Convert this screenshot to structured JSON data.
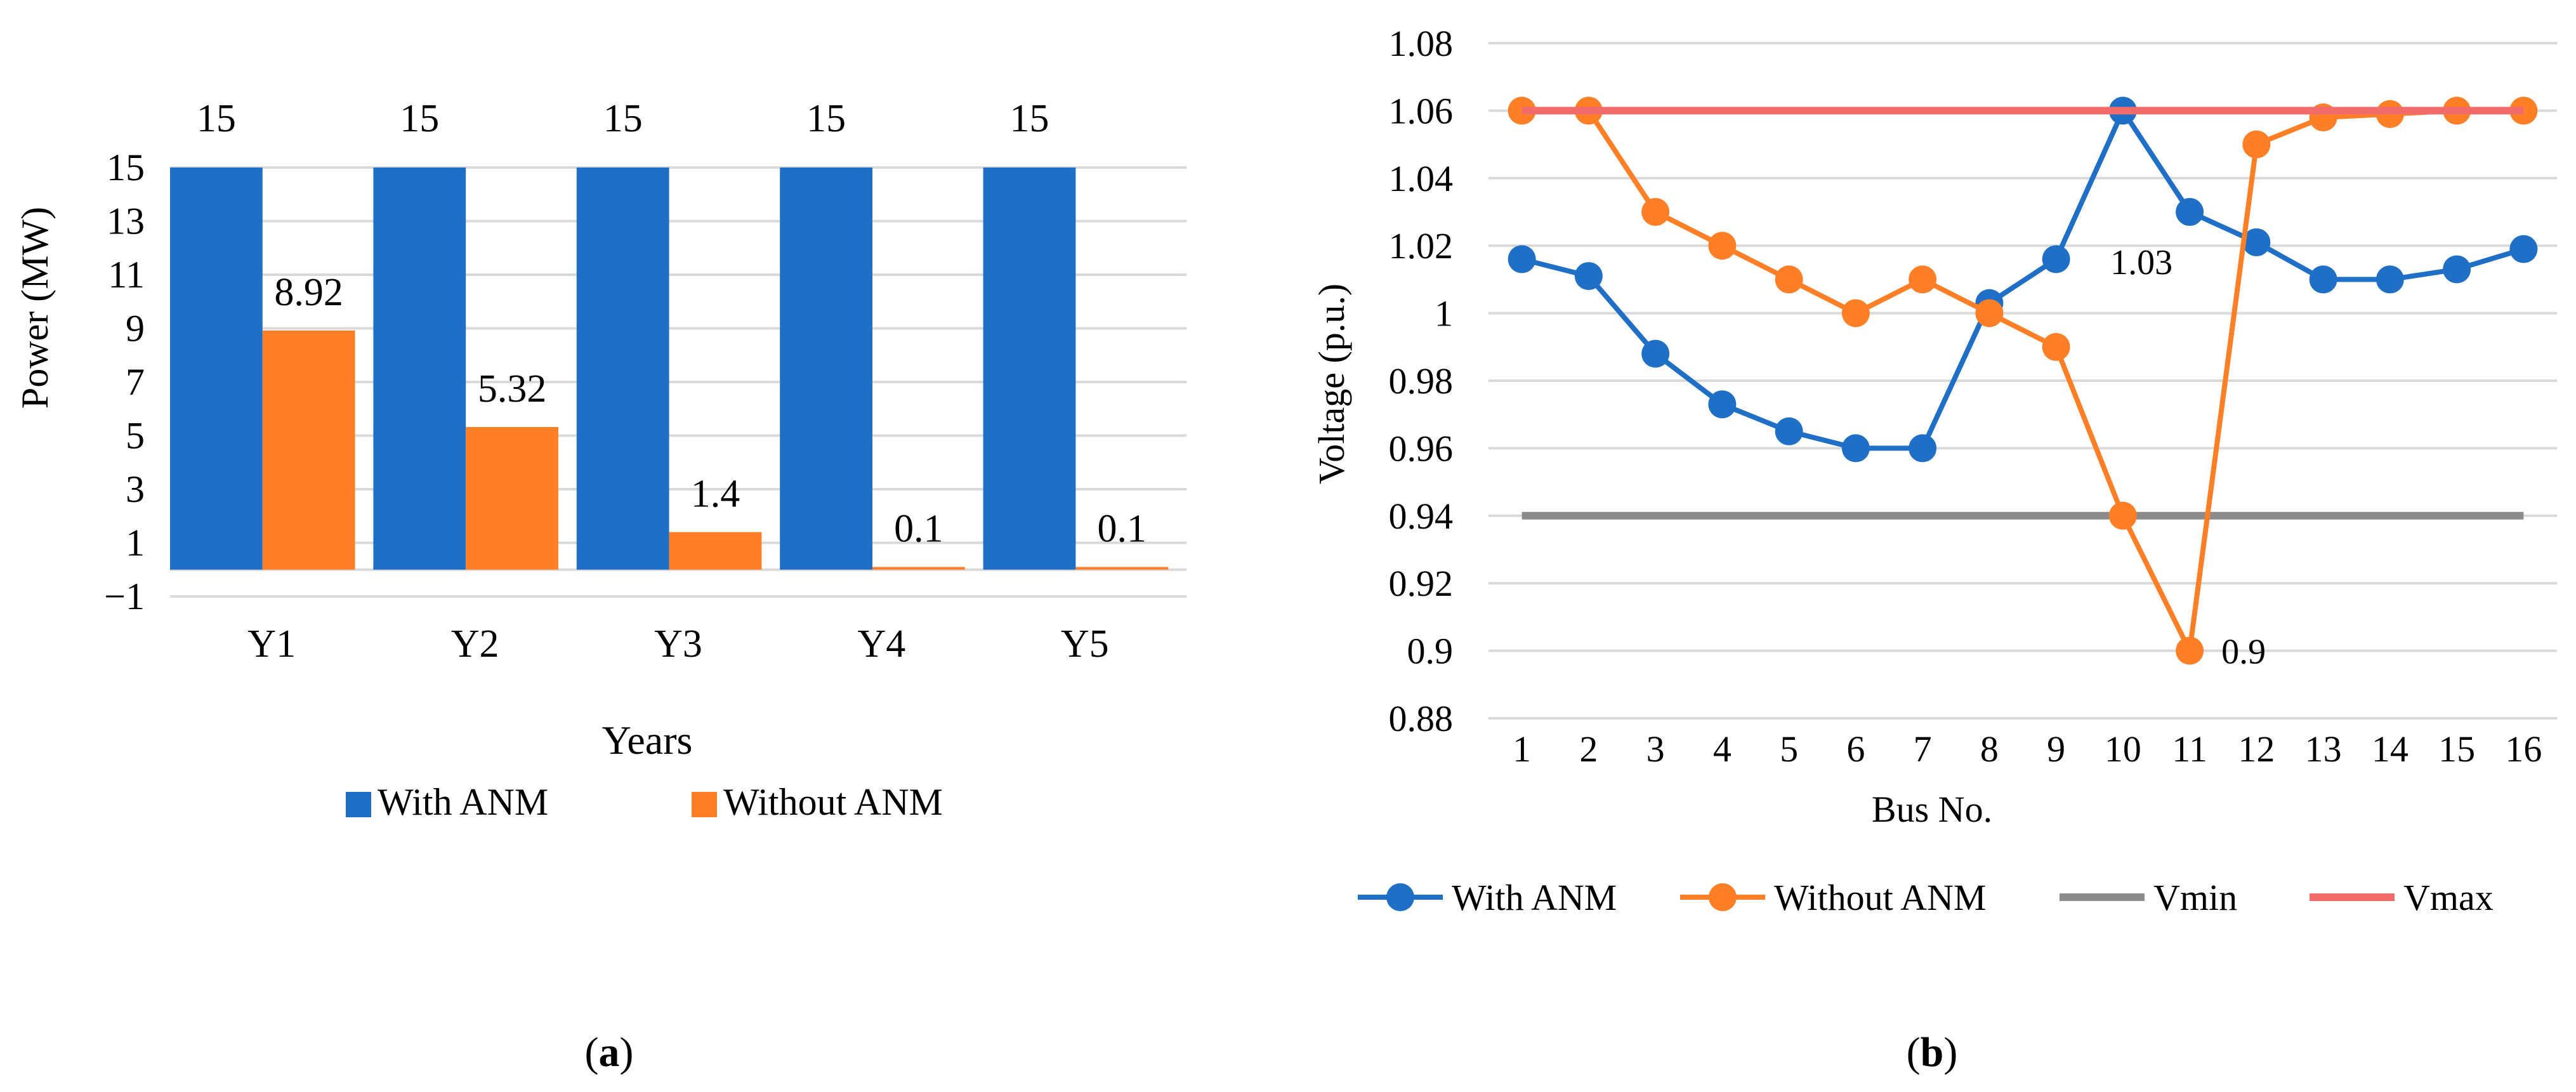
{
  "chart_data": [
    {
      "type": "bar",
      "panel_label": "a",
      "title": "",
      "xlabel": "Years",
      "ylabel": "Power (MW)",
      "ylim": [
        -1,
        15
      ],
      "yticks": [
        -1,
        1,
        3,
        5,
        7,
        9,
        11,
        13,
        15
      ],
      "categories": [
        "Y1",
        "Y2",
        "Y3",
        "Y4",
        "Y5"
      ],
      "series": [
        {
          "name": "With ANM",
          "color": "#1F6FC6",
          "values": [
            15,
            15,
            15,
            15,
            15
          ],
          "labels": [
            "15",
            "15",
            "15",
            "15",
            "15"
          ]
        },
        {
          "name": "Without ANM",
          "color": "#FF7F27",
          "values": [
            8.92,
            5.32,
            1.4,
            0.1,
            0.1
          ],
          "labels": [
            "8.92",
            "5.32",
            "1.4",
            "0.1",
            "0.1"
          ]
        }
      ],
      "grid": true,
      "legend": "bottom"
    },
    {
      "type": "line",
      "panel_label": "b",
      "title": "",
      "xlabel": "Bus No.",
      "ylabel": "Voltage (p.u.)",
      "ylim": [
        0.88,
        1.08
      ],
      "yticks": [
        0.88,
        0.9,
        0.92,
        0.94,
        0.96,
        0.98,
        1.0,
        1.02,
        1.04,
        1.06,
        1.08
      ],
      "ytick_labels": [
        "0.88",
        "0.9",
        "0.92",
        "0.94",
        "0.96",
        "0.98",
        "1",
        "1.02",
        "1.04",
        "1.06",
        "1.08"
      ],
      "x": [
        1,
        2,
        3,
        4,
        5,
        6,
        7,
        8,
        9,
        10,
        11,
        12,
        13,
        14,
        15,
        16
      ],
      "series": [
        {
          "name": "With ANM",
          "color": "#1F6FC6",
          "marker": true,
          "values": [
            1.016,
            1.011,
            0.988,
            0.973,
            0.965,
            0.96,
            0.96,
            1.003,
            1.016,
            1.06,
            1.03,
            1.021,
            1.01,
            1.01,
            1.013,
            1.019
          ]
        },
        {
          "name": "Without ANM",
          "color": "#FF7F27",
          "marker": true,
          "values": [
            1.06,
            1.06,
            1.03,
            1.02,
            1.01,
            1.0,
            1.01,
            1.0,
            0.99,
            0.94,
            0.9,
            1.05,
            1.058,
            1.059,
            1.06,
            1.06
          ]
        },
        {
          "name": "Vmin",
          "color": "#8C8C8C",
          "marker": false,
          "values": [
            0.94,
            0.94,
            0.94,
            0.94,
            0.94,
            0.94,
            0.94,
            0.94,
            0.94,
            0.94,
            0.94,
            0.94,
            0.94,
            0.94,
            0.94,
            0.94
          ]
        },
        {
          "name": "Vmax",
          "color": "#F26B6B",
          "marker": false,
          "values": [
            1.06,
            1.06,
            1.06,
            1.06,
            1.06,
            1.06,
            1.06,
            1.06,
            1.06,
            1.06,
            1.06,
            1.06,
            1.06,
            1.06,
            1.06,
            1.06
          ]
        }
      ],
      "annotations": [
        {
          "text": "1.03",
          "series": "With ANM",
          "x": 11,
          "y": 1.03
        },
        {
          "text": "0.9",
          "series": "Without ANM",
          "x": 11,
          "y": 0.9
        }
      ],
      "grid": true,
      "legend": "bottom"
    }
  ]
}
